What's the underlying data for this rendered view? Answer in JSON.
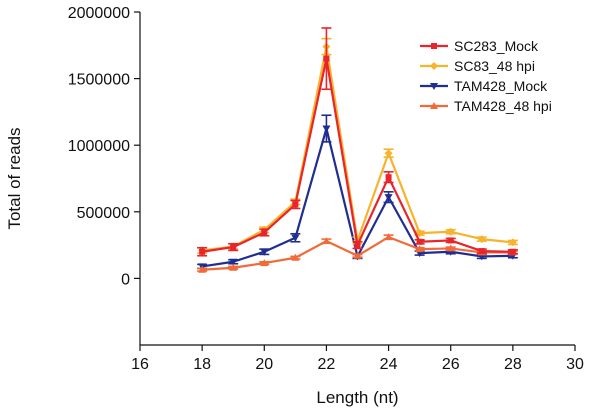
{
  "chart_data": {
    "type": "line",
    "xlabel": "Length (nt)",
    "ylabel": "Total of reads",
    "xlim": [
      16,
      30
    ],
    "ylim": [
      -500000,
      2000000
    ],
    "xticks": [
      16,
      18,
      20,
      22,
      24,
      26,
      28,
      30
    ],
    "yticks": [
      0,
      500000,
      1000000,
      1500000,
      2000000
    ],
    "xtick_labels": [
      "16",
      "18",
      "20",
      "22",
      "24",
      "26",
      "28",
      "30"
    ],
    "ytick_labels": [
      "0",
      "500000",
      "1000000",
      "1500000",
      "2000000"
    ],
    "grid": false,
    "legend_position": "top-right",
    "x": [
      18,
      19,
      20,
      21,
      22,
      23,
      24,
      25,
      26,
      27,
      28
    ],
    "series": [
      {
        "name": "SC283_Mock",
        "color": "#e8252b",
        "marker": "square",
        "values": [
          200000,
          235000,
          345000,
          555000,
          1650000,
          250000,
          760000,
          275000,
          285000,
          205000,
          200000
        ],
        "errors": [
          30000,
          25000,
          25000,
          30000,
          230000,
          25000,
          40000,
          15000,
          15000,
          15000,
          15000
        ]
      },
      {
        "name": "SC83_48 hpi",
        "color": "#f7b32b",
        "marker": "diamond",
        "values": [
          210000,
          240000,
          365000,
          575000,
          1740000,
          285000,
          940000,
          340000,
          350000,
          295000,
          270000
        ],
        "errors": [
          20000,
          20000,
          20000,
          20000,
          60000,
          25000,
          30000,
          15000,
          15000,
          15000,
          15000
        ]
      },
      {
        "name": "TAM428_Mock",
        "color": "#1f2e8f",
        "marker": "triangle-down",
        "values": [
          90000,
          125000,
          200000,
          305000,
          1125000,
          165000,
          610000,
          190000,
          200000,
          165000,
          170000
        ],
        "errors": [
          15000,
          15000,
          20000,
          30000,
          100000,
          15000,
          40000,
          15000,
          15000,
          15000,
          15000
        ]
      },
      {
        "name": "TAM428_48 hpi",
        "color": "#f26a3a",
        "marker": "triangle-up",
        "values": [
          65000,
          80000,
          115000,
          155000,
          280000,
          170000,
          310000,
          220000,
          225000,
          195000,
          195000
        ],
        "errors": [
          10000,
          10000,
          10000,
          10000,
          15000,
          10000,
          15000,
          10000,
          10000,
          10000,
          10000
        ]
      }
    ]
  }
}
